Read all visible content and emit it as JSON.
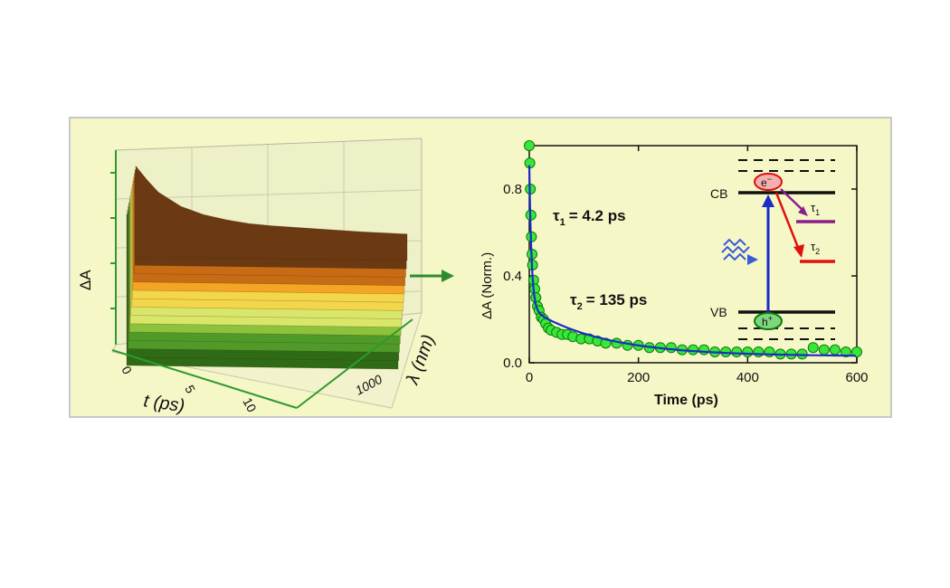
{
  "figure": {
    "colors": {
      "background": "#f6f7c6",
      "frame": "#c8c8c8",
      "axis3d": "#2e9a2e",
      "arrow": "#2e8b2e"
    }
  },
  "chart_data": [
    {
      "type": "surface3d",
      "xlabel": "t (ps)",
      "ylabel": "λ (nm)",
      "zlabel": "ΔA",
      "x_ticks": [
        "0",
        "5",
        "10"
      ],
      "y_ticks": [
        "1000"
      ],
      "surface_colors": [
        "#2f6b16",
        "#4f9a28",
        "#8cc23c",
        "#d9e66a",
        "#f3d64a",
        "#f5a524",
        "#c76b14",
        "#6b3a12"
      ],
      "decay_profile": {
        "t": [
          0,
          0.5,
          1,
          2,
          3,
          4,
          5,
          6,
          8,
          10,
          12
        ],
        "dA_norm": [
          1.0,
          0.82,
          0.66,
          0.48,
          0.38,
          0.32,
          0.28,
          0.26,
          0.24,
          0.22,
          0.21
        ]
      }
    },
    {
      "type": "scatter",
      "xlabel": "Time (ps)",
      "ylabel": "ΔA (Norm.)",
      "xlim": [
        0,
        600
      ],
      "ylim": [
        0,
        1.0
      ],
      "x_ticks": [
        0,
        200,
        400,
        600
      ],
      "y_ticks": [
        0.0,
        0.4,
        0.8
      ],
      "y_tick_labels": [
        "0.0",
        "0.4",
        "0.8"
      ],
      "series": [
        {
          "kind": "points",
          "color": "#39e639",
          "edge": "#0a7a0a",
          "x": [
            0,
            1,
            2,
            3,
            4,
            5,
            6,
            8,
            10,
            12,
            15,
            18,
            22,
            26,
            30,
            35,
            40,
            50,
            60,
            70,
            80,
            95,
            110,
            125,
            140,
            160,
            180,
            200,
            220,
            240,
            260,
            280,
            300,
            320,
            340,
            360,
            380,
            400,
            420,
            440,
            460,
            480,
            500,
            520,
            540,
            560,
            580,
            600
          ],
          "y": [
            1.0,
            0.92,
            0.8,
            0.68,
            0.58,
            0.5,
            0.45,
            0.38,
            0.34,
            0.3,
            0.26,
            0.24,
            0.21,
            0.2,
            0.18,
            0.16,
            0.15,
            0.14,
            0.13,
            0.13,
            0.12,
            0.11,
            0.11,
            0.1,
            0.09,
            0.09,
            0.08,
            0.08,
            0.07,
            0.07,
            0.07,
            0.06,
            0.06,
            0.06,
            0.05,
            0.05,
            0.05,
            0.05,
            0.05,
            0.05,
            0.04,
            0.04,
            0.04,
            0.07,
            0.06,
            0.06,
            0.05,
            0.05
          ]
        },
        {
          "kind": "fit",
          "color": "#1a2bc8",
          "model": "biexponential",
          "a1": 0.66,
          "tau1": 4.2,
          "a2": 0.22,
          "tau2": 135,
          "c": 0.03
        }
      ],
      "annotations": {
        "tau1_symbol": "τ",
        "tau1_sub": "1",
        "tau1_value": "= 4.2 ps",
        "tau2_symbol": "τ",
        "tau2_sub": "2",
        "tau2_value": "= 135 ps"
      }
    }
  ],
  "inset": {
    "cb": "CB",
    "vb": "VB",
    "electron": "e",
    "electron_sup": "−",
    "hole": "h",
    "hole_sup": "+",
    "tau": "τ",
    "tau1_sub": "1",
    "tau2_sub": "2",
    "colors": {
      "level": "#111111",
      "excite": "#1a2bc8",
      "path1": "#8a1f8a",
      "path2": "#e01010",
      "electron_fill": "#f4b0b0",
      "hole_fill": "#7fd67f",
      "pulse": "#3a5bd8"
    }
  }
}
